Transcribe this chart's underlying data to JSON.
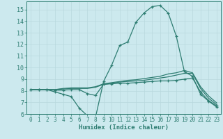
{
  "xlabel": "Humidex (Indice chaleur)",
  "bg_color": "#cce9ee",
  "grid_color": "#b8d8de",
  "line_color": "#2e7d72",
  "xlim": [
    -0.5,
    23.5
  ],
  "ylim": [
    6,
    15.7
  ],
  "yticks": [
    6,
    7,
    8,
    9,
    10,
    11,
    12,
    13,
    14,
    15
  ],
  "xticks": [
    0,
    1,
    2,
    3,
    4,
    5,
    6,
    7,
    8,
    9,
    10,
    11,
    12,
    13,
    14,
    15,
    16,
    17,
    18,
    19,
    20,
    21,
    22,
    23
  ],
  "line1_x": [
    0,
    1,
    2,
    3,
    4,
    5,
    6,
    7,
    8,
    9,
    10,
    11,
    12,
    13,
    14,
    15,
    16,
    17,
    18,
    19,
    20,
    21,
    22,
    23
  ],
  "line1_y": [
    8.1,
    8.1,
    8.1,
    7.9,
    7.7,
    7.5,
    6.5,
    5.85,
    5.7,
    8.8,
    10.2,
    11.9,
    12.2,
    13.9,
    14.7,
    15.25,
    15.35,
    14.7,
    12.7,
    9.65,
    9.25,
    7.7,
    7.1,
    6.6
  ],
  "line2_x": [
    0,
    1,
    2,
    3,
    4,
    5,
    6,
    7,
    8,
    9,
    10,
    11,
    12,
    13,
    14,
    15,
    16,
    17,
    18,
    19,
    20,
    21,
    22,
    23
  ],
  "line2_y": [
    8.1,
    8.1,
    8.1,
    8.05,
    8.05,
    8.1,
    8.1,
    7.75,
    7.6,
    8.55,
    8.6,
    8.65,
    8.65,
    8.7,
    8.75,
    8.8,
    8.85,
    8.85,
    8.9,
    9.0,
    9.1,
    7.9,
    7.15,
    6.7
  ],
  "line3_x": [
    0,
    1,
    2,
    3,
    4,
    5,
    6,
    7,
    8,
    9,
    10,
    11,
    12,
    13,
    14,
    15,
    16,
    17,
    18,
    19,
    20,
    21,
    22,
    23
  ],
  "line3_y": [
    8.1,
    8.1,
    8.1,
    8.1,
    8.15,
    8.2,
    8.2,
    8.2,
    8.3,
    8.55,
    8.65,
    8.75,
    8.8,
    8.85,
    8.9,
    9.0,
    9.1,
    9.2,
    9.35,
    9.5,
    9.5,
    8.2,
    7.35,
    6.8
  ],
  "line4_x": [
    0,
    1,
    2,
    3,
    4,
    5,
    6,
    7,
    8,
    9,
    10,
    11,
    12,
    13,
    14,
    15,
    16,
    17,
    18,
    19,
    20,
    21,
    22,
    23
  ],
  "line4_y": [
    8.1,
    8.1,
    8.1,
    8.1,
    8.2,
    8.25,
    8.25,
    8.25,
    8.35,
    8.6,
    8.7,
    8.8,
    8.9,
    8.95,
    9.05,
    9.15,
    9.25,
    9.45,
    9.55,
    9.75,
    9.55,
    8.35,
    7.55,
    6.95
  ]
}
